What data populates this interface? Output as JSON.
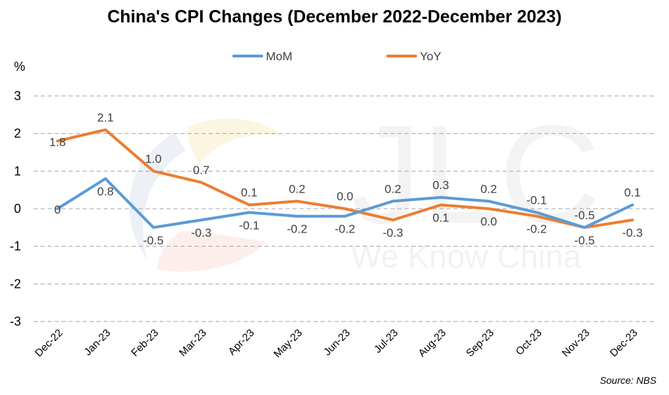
{
  "chart_data": {
    "type": "line",
    "title": "China's CPI Changes (December 2022-December 2023)",
    "ylabel": "%",
    "xlabel": "",
    "ylim": [
      -3,
      3
    ],
    "yticks": [
      3,
      2,
      1,
      0,
      -1,
      -2,
      -3
    ],
    "grid": true,
    "legend_position": "top",
    "categories": [
      "Dec-22",
      "Jan-23",
      "Feb-23",
      "Mar-23",
      "Apr-23",
      "May-23",
      "Jun-23",
      "Jul-23",
      "Aug-23",
      "Sep-23",
      "Oct-23",
      "Nov-23",
      "Dec-23"
    ],
    "series": [
      {
        "name": "MoM",
        "color": "#5B9BD5",
        "values": [
          0,
          0.8,
          -0.5,
          -0.3,
          -0.1,
          -0.2,
          -0.2,
          0.2,
          0.3,
          0.2,
          -0.1,
          -0.5,
          0.1
        ],
        "labels": [
          "0",
          "0.8",
          "-0.5",
          "-0.3",
          "-0.1",
          "-0.2",
          "-0.2",
          "0.2",
          "0.3",
          "0.2",
          "-0.1",
          "-0.5",
          "0.1"
        ]
      },
      {
        "name": "YoY",
        "color": "#ED7D31",
        "values": [
          1.8,
          2.1,
          1.0,
          0.7,
          0.1,
          0.2,
          0.0,
          -0.3,
          0.1,
          0.0,
          -0.2,
          -0.5,
          -0.3
        ],
        "labels": [
          "1.8",
          "2.1",
          "1.0",
          "0.7",
          "0.1",
          "0.2",
          "0.0",
          "-0.3",
          "0.1",
          "0.0",
          "-0.2",
          "-0.5",
          "-0.3"
        ]
      }
    ],
    "source": "Source: NBS"
  },
  "watermark": {
    "text_main": "JLC",
    "text_sub": "We Know China"
  }
}
